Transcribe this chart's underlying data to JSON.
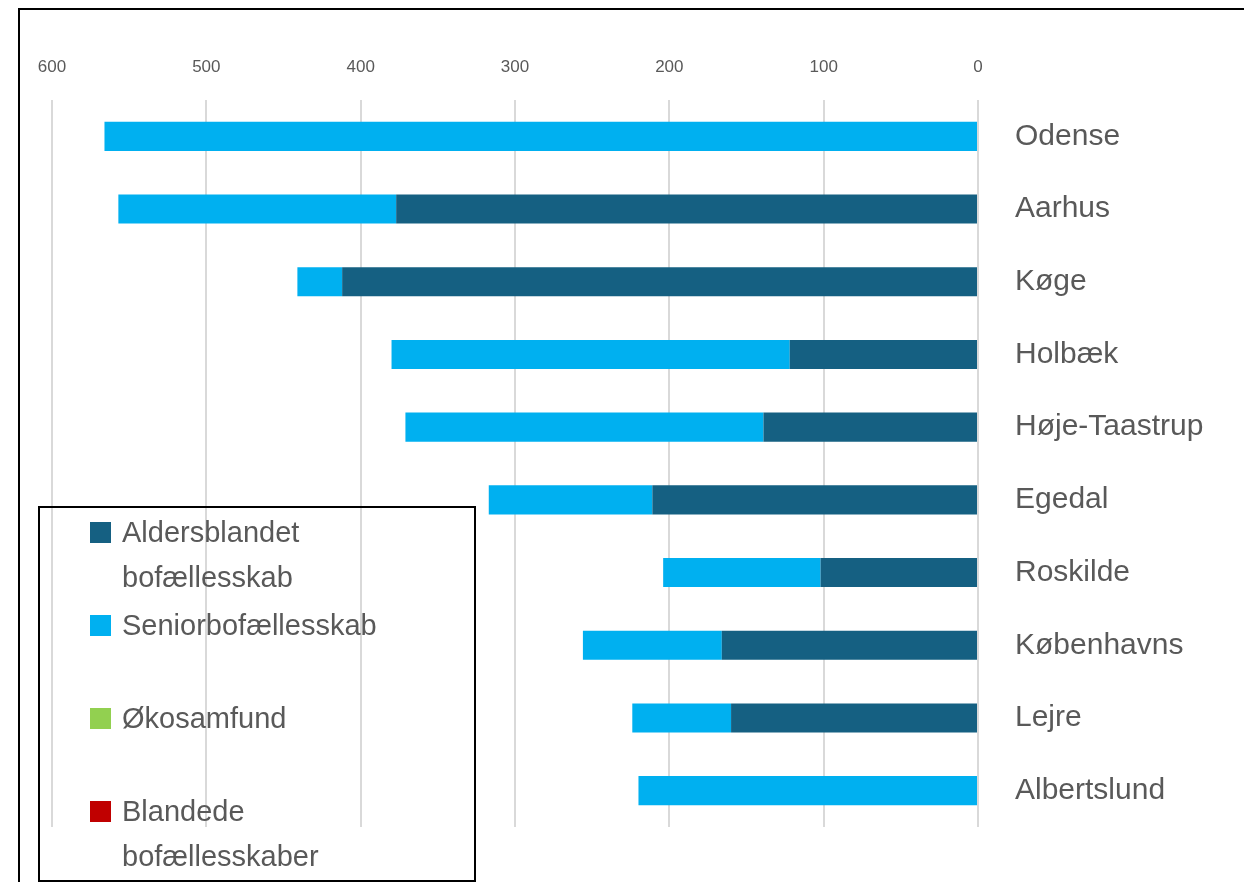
{
  "chart_data": {
    "type": "bar",
    "orientation": "horizontal",
    "stacked": true,
    "categories": [
      "Odense",
      "Aarhus",
      "Køge",
      "Holbæk",
      "Høje-Taastrup",
      "Egedal",
      "Roskilde",
      "Københavns",
      "Lejre",
      "Albertslund"
    ],
    "series": [
      {
        "name": "Aldersblandet bofællesskab",
        "color": "#156082",
        "values": [
          null,
          377,
          412,
          122,
          139,
          211,
          102,
          166,
          160,
          null
        ]
      },
      {
        "name": "Seniorbofællesskab",
        "color": "#00b0f0",
        "values": [
          566,
          180,
          29,
          258,
          232,
          106,
          102,
          90,
          64,
          220
        ]
      },
      {
        "name": "Økosamfund",
        "color": "#92d050",
        "values": [
          null,
          null,
          null,
          null,
          null,
          null,
          null,
          null,
          null,
          null
        ]
      },
      {
        "name": "Blandede bofællesskaber",
        "color": "#c00000",
        "values": [
          null,
          null,
          null,
          null,
          null,
          null,
          null,
          null,
          null,
          null
        ]
      }
    ],
    "xlim": [
      600,
      0
    ],
    "xticks": [
      600,
      500,
      400,
      300,
      200,
      100,
      0
    ],
    "grid": "x",
    "legend": "bottom left"
  }
}
